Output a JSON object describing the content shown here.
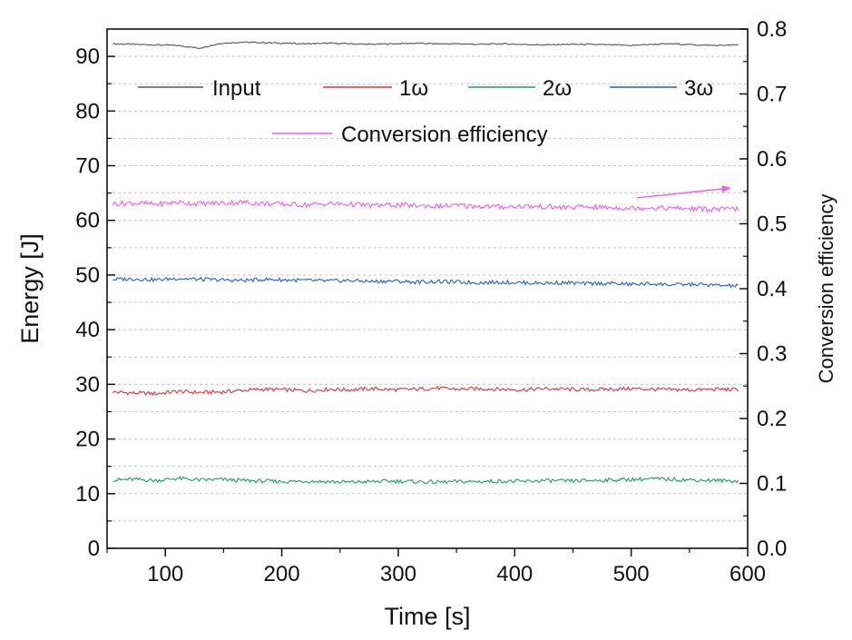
{
  "chart_data": {
    "type": "line",
    "title": "",
    "xlabel": "Time [s]",
    "ylabel": "Energy [J]",
    "y2label": "Conversion efficiency",
    "xlim": [
      50,
      600
    ],
    "ylim": [
      0,
      95
    ],
    "y2lim": [
      0,
      0.8
    ],
    "x_ticks": [
      100,
      200,
      300,
      400,
      500,
      600
    ],
    "y_ticks": [
      0,
      10,
      20,
      30,
      40,
      50,
      60,
      70,
      80,
      90
    ],
    "y2_ticks": [
      "0.0",
      "0.1",
      "0.2",
      "0.3",
      "0.4",
      "0.5",
      "0.6",
      "0.7",
      "0.8"
    ],
    "x_range": [
      55,
      592
    ],
    "grid": true,
    "legend_position": "top",
    "series": [
      {
        "name": "Input",
        "axis": "left",
        "color": "#555555",
        "values": [
          92.3,
          92.2,
          92.1,
          92.0,
          91.5,
          92.4,
          92.6,
          92.5,
          92.4,
          92.3,
          92.4,
          92.3,
          92.2,
          92.3,
          92.4,
          92.3,
          92.3,
          92.2,
          92.3,
          92.2,
          92.1,
          92.2,
          92.2,
          92.1,
          92.0,
          92.2,
          92.3,
          92.1,
          92.0,
          92.1
        ]
      },
      {
        "name": "1ω",
        "axis": "left",
        "color": "#e8303a",
        "values": [
          28.6,
          28.4,
          28.3,
          28.7,
          28.5,
          28.6,
          28.9,
          29.1,
          29.0,
          28.8,
          29.1,
          29.0,
          29.2,
          29.0,
          29.1,
          29.3,
          29.1,
          29.2,
          29.1,
          29.0,
          29.2,
          29.1,
          29.0,
          29.1,
          29.2,
          29.1,
          29.0,
          29.0,
          29.1,
          29.0
        ]
      },
      {
        "name": "2ω",
        "axis": "left",
        "color": "#1aa060",
        "values": [
          12.5,
          12.6,
          12.4,
          12.8,
          12.5,
          12.6,
          12.4,
          12.3,
          12.2,
          12.3,
          12.2,
          12.1,
          12.2,
          12.3,
          12.2,
          12.1,
          12.2,
          12.2,
          12.3,
          12.2,
          12.4,
          12.3,
          12.4,
          12.5,
          12.6,
          12.7,
          12.6,
          12.5,
          12.4,
          12.3
        ]
      },
      {
        "name": "3ω",
        "axis": "left",
        "color": "#1f5fd0",
        "values": [
          49.2,
          49.3,
          49.1,
          49.4,
          49.2,
          49.1,
          49.0,
          49.2,
          49.1,
          49.0,
          48.9,
          49.0,
          48.8,
          48.9,
          48.7,
          48.8,
          48.7,
          48.6,
          48.7,
          48.6,
          48.5,
          48.6,
          48.4,
          48.5,
          48.3,
          48.4,
          48.2,
          48.3,
          48.1,
          48.0
        ]
      },
      {
        "name": "Conversion efficiency",
        "axis": "right",
        "color": "#f25cf0",
        "values": [
          0.531,
          0.532,
          0.53,
          0.533,
          0.531,
          0.532,
          0.533,
          0.531,
          0.53,
          0.529,
          0.531,
          0.53,
          0.528,
          0.529,
          0.528,
          0.527,
          0.528,
          0.527,
          0.526,
          0.527,
          0.526,
          0.525,
          0.526,
          0.525,
          0.524,
          0.525,
          0.524,
          0.523,
          0.522,
          0.523
        ]
      }
    ],
    "annotations": [
      {
        "type": "arrow",
        "color": "#f25cf0",
        "from": [
          505,
          0.54
        ],
        "to": [
          585,
          0.555
        ],
        "meaning": "conversion efficiency uses right axis"
      }
    ]
  }
}
